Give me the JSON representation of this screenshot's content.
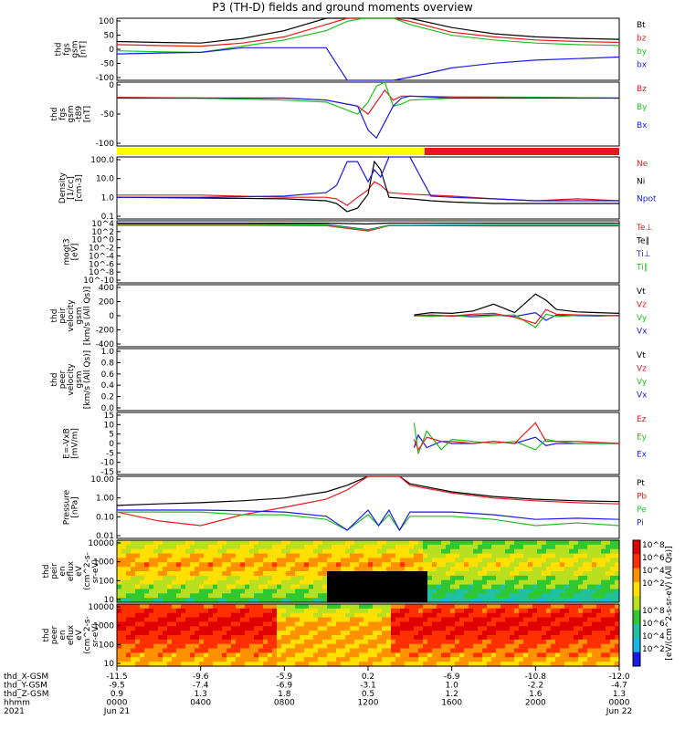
{
  "title": "P3 (TH-D) fields and ground moments overview",
  "colors": {
    "black": "#000000",
    "red": "#e8191c",
    "green": "#20c020",
    "blue": "#1a1ae6",
    "yellow": "#ffff00"
  },
  "chart_data": [
    {
      "type": "line",
      "id": "fgs_gsm",
      "ylabel": [
        "thd",
        "fgs",
        "gsm",
        "[nT]"
      ],
      "ylim": [
        -100,
        100
      ],
      "yticks": [
        "100",
        "50",
        "0",
        "-50",
        "-100"
      ],
      "legend": [
        {
          "name": "Bt",
          "color": "black"
        },
        {
          "name": "bz",
          "color": "red"
        },
        {
          "name": "by",
          "color": "green"
        },
        {
          "name": "bx",
          "color": "blue"
        }
      ],
      "x_hours": [
        0,
        2,
        4,
        6,
        8,
        10,
        11,
        11.8,
        12.5,
        13.2,
        14,
        16,
        18,
        20,
        22,
        24
      ],
      "series": [
        {
          "name": "Bt",
          "color": "black",
          "values": [
            25,
            22,
            20,
            35,
            60,
            100,
            100,
            100,
            100,
            100,
            100,
            70,
            50,
            40,
            35,
            32
          ]
        },
        {
          "name": "bz",
          "color": "red",
          "values": [
            15,
            12,
            10,
            20,
            40,
            80,
            100,
            100,
            100,
            100,
            90,
            55,
            40,
            30,
            25,
            22
          ]
        },
        {
          "name": "by",
          "color": "green",
          "values": [
            -5,
            -8,
            -10,
            10,
            30,
            60,
            90,
            100,
            100,
            100,
            80,
            45,
            30,
            20,
            15,
            12
          ]
        },
        {
          "name": "bx",
          "color": "blue",
          "values": [
            -15,
            -12,
            -10,
            5,
            5,
            5,
            -100,
            -100,
            -100,
            -100,
            -90,
            -60,
            -45,
            -35,
            -30,
            -25
          ]
        }
      ]
    },
    {
      "type": "line",
      "id": "fgs_gse",
      "ylabel": [
        "thd",
        "fgs",
        "gsm",
        "-t89",
        "[nT]"
      ],
      "ylim": [
        -120,
        40
      ],
      "yticks": [
        "0",
        "-50",
        "-100"
      ],
      "legend": [
        {
          "name": "Bz",
          "color": "red"
        },
        {
          "name": "By",
          "color": "green"
        },
        {
          "name": "Bx",
          "color": "blue"
        }
      ],
      "x_hours": [
        0,
        4,
        8,
        10,
        11.5,
        12,
        12.4,
        12.8,
        13.2,
        13.6,
        14,
        16,
        20,
        24
      ],
      "series": [
        {
          "name": "Bz",
          "color": "red",
          "values": [
            2,
            0,
            0,
            -5,
            -20,
            -40,
            -10,
            20,
            -5,
            5,
            5,
            3,
            2,
            0
          ]
        },
        {
          "name": "By",
          "color": "green",
          "values": [
            0,
            0,
            -5,
            -10,
            -40,
            -10,
            30,
            50,
            -20,
            -15,
            -5,
            0,
            2,
            0
          ]
        },
        {
          "name": "Bx",
          "color": "blue",
          "values": [
            0,
            0,
            0,
            -5,
            -20,
            -80,
            -100,
            -60,
            -20,
            0,
            5,
            0,
            0,
            0
          ]
        }
      ]
    },
    {
      "type": "bar",
      "id": "region_bar",
      "segments": [
        {
          "from": 0,
          "to": 14.7,
          "color": "yellow"
        },
        {
          "from": 14.7,
          "to": 24,
          "color": "red"
        }
      ]
    },
    {
      "type": "line",
      "id": "density",
      "log": true,
      "ylabel": [
        "Density",
        "[1/cc]",
        "[cm-3]"
      ],
      "ylim": [
        0.02,
        200
      ],
      "yticks": [
        "100.0",
        "10.0",
        "1.0",
        "0.1"
      ],
      "legend": [
        {
          "name": "Ne",
          "color": "red"
        },
        {
          "name": "Ni",
          "color": "black"
        },
        {
          "name": "Npot",
          "color": "blue"
        }
      ],
      "x_hours": [
        0,
        4,
        8,
        10,
        10.5,
        11,
        11.5,
        12,
        12.3,
        12.6,
        13,
        14,
        15,
        16,
        18,
        20,
        22,
        24
      ],
      "series": [
        {
          "name": "Ne",
          "color": "red",
          "values": [
            0.7,
            0.7,
            0.5,
            0.5,
            0.4,
            0.15,
            0.5,
            1.5,
            5,
            3,
            1,
            0.8,
            0.7,
            0.6,
            0.4,
            0.3,
            0.4,
            0.3
          ]
        },
        {
          "name": "Ni",
          "color": "black",
          "values": [
            0.5,
            0.45,
            0.4,
            0.3,
            0.2,
            0.06,
            0.1,
            0.8,
            100,
            30,
            0.5,
            0.4,
            0.3,
            0.25,
            0.2,
            0.2,
            0.2,
            0.2
          ]
        },
        {
          "name": "Npot",
          "color": "blue",
          "values": [
            0.5,
            0.5,
            0.6,
            1.0,
            3.0,
            100,
            100,
            5,
            30,
            10,
            200,
            200,
            0.6,
            0.5,
            0.4,
            0.3,
            0.3,
            0.3
          ]
        }
      ]
    },
    {
      "type": "line",
      "id": "temp",
      "log": true,
      "ylabel": [
        "mogt3",
        "[eV]"
      ],
      "ylim": [
        1e-10,
        10000
      ],
      "yticks": [
        "10^4",
        "10^2",
        "10^0",
        "10^-2",
        "10^-4",
        "10^-6",
        "10^-8",
        "10^-10"
      ],
      "legend": [
        {
          "name": "Te⊥",
          "color": "red"
        },
        {
          "name": "Te∥",
          "color": "black"
        },
        {
          "name": "Ti⊥",
          "color": "blue"
        },
        {
          "name": "Ti∥",
          "color": "green"
        }
      ],
      "x_hours": [
        0,
        6,
        10,
        12,
        13,
        14,
        18,
        24
      ],
      "series": [
        {
          "name": "Te∥",
          "color": "black",
          "values": [
            3000,
            3000,
            3000,
            2000,
            3000,
            3000,
            3000,
            3000
          ]
        },
        {
          "name": "Te⊥",
          "color": "red",
          "values": [
            1000,
            1000,
            800,
            50,
            800,
            800,
            700,
            700
          ]
        },
        {
          "name": "Ti⊥",
          "color": "blue",
          "values": [
            2000,
            2000,
            1500,
            100,
            1000,
            1000,
            1200,
            1200
          ]
        },
        {
          "name": "Ti∥",
          "color": "green",
          "values": [
            1500,
            1500,
            1200,
            80,
            900,
            900,
            1000,
            1000
          ]
        }
      ]
    },
    {
      "type": "line",
      "id": "peir_velocity",
      "ylabel": [
        "thd",
        "peir",
        "velocity",
        "gsm",
        "[km/s (All Qs)]"
      ],
      "ylim": [
        -400,
        400
      ],
      "yticks": [
        "400",
        "200",
        "0",
        "-200",
        "-400"
      ],
      "legend": [
        {
          "name": "Vt",
          "color": "black"
        },
        {
          "name": "Vz",
          "color": "red"
        },
        {
          "name": "Vy",
          "color": "green"
        },
        {
          "name": "Vx",
          "color": "blue"
        }
      ],
      "x_hours": [
        14.2,
        15,
        16,
        17,
        18,
        19,
        20,
        20.5,
        21,
        22,
        23,
        24
      ],
      "series": [
        {
          "name": "Vx",
          "color": "blue",
          "values": [
            0,
            5,
            -5,
            0,
            10,
            -10,
            40,
            -60,
            10,
            0,
            -5,
            5
          ]
        },
        {
          "name": "Vy",
          "color": "green",
          "values": [
            0,
            -10,
            5,
            -20,
            0,
            10,
            -150,
            20,
            -10,
            5,
            0,
            0
          ]
        },
        {
          "name": "Vz",
          "color": "red",
          "values": [
            0,
            10,
            -5,
            20,
            30,
            -20,
            -100,
            80,
            20,
            10,
            5,
            0
          ]
        },
        {
          "name": "Vt",
          "color": "black",
          "values": [
            10,
            40,
            30,
            60,
            150,
            40,
            280,
            200,
            80,
            50,
            40,
            30
          ]
        }
      ]
    },
    {
      "type": "line",
      "id": "peer_velocity",
      "ylabel": [
        "thd",
        "peer",
        "velocity",
        "gsm",
        "[km/s (All Qs)]"
      ],
      "ylim": [
        0,
        1
      ],
      "yticks": [
        "1.0",
        "0.8",
        "0.6",
        "0.4",
        "0.2",
        "0.0"
      ],
      "legend": [
        {
          "name": "Vt",
          "color": "black"
        },
        {
          "name": "Vz",
          "color": "red"
        },
        {
          "name": "Vy",
          "color": "green"
        },
        {
          "name": "Vx",
          "color": "blue"
        }
      ],
      "x_hours": [],
      "series": []
    },
    {
      "type": "line",
      "id": "efield",
      "ylabel": [
        "E=-VxB",
        "[mV/m]"
      ],
      "ylim": [
        -15,
        15
      ],
      "yticks": [
        "15",
        "10",
        "5",
        "0",
        "-5",
        "-10",
        "-15"
      ],
      "legend": [
        {
          "name": "Ez",
          "color": "red"
        },
        {
          "name": "Ey",
          "color": "green"
        },
        {
          "name": "Ex",
          "color": "blue"
        }
      ],
      "x_hours": [
        14.2,
        14.4,
        14.8,
        15.5,
        16,
        17,
        18,
        19,
        20,
        20.5,
        21,
        22,
        24
      ],
      "series": [
        {
          "name": "Ex",
          "color": "blue",
          "values": [
            -2,
            4,
            -2,
            1,
            0,
            0,
            1,
            0,
            3,
            -1,
            0,
            0,
            0
          ]
        },
        {
          "name": "Ey",
          "color": "green",
          "values": [
            10,
            -5,
            6,
            -3,
            2,
            1,
            0,
            1,
            -3,
            2,
            1,
            0,
            0
          ]
        },
        {
          "name": "Ez",
          "color": "red",
          "values": [
            2,
            -3,
            3,
            1,
            1,
            0,
            1,
            0,
            10,
            1,
            1,
            1,
            0
          ]
        }
      ]
    },
    {
      "type": "line",
      "id": "pressure",
      "log": true,
      "ylabel": [
        "Pressure",
        "[nPa]"
      ],
      "ylim": [
        0.003,
        30
      ],
      "yticks": [
        "10.00",
        "1.00",
        "0.10",
        "0.01"
      ],
      "legend": [
        {
          "name": "Pt",
          "color": "black"
        },
        {
          "name": "Pb",
          "color": "red"
        },
        {
          "name": "Pe",
          "color": "green"
        },
        {
          "name": "Pi",
          "color": "blue"
        }
      ],
      "x_hours": [
        0,
        2,
        4,
        6,
        8,
        10,
        11,
        12,
        12.5,
        13,
        13.5,
        14,
        16,
        18,
        20,
        22,
        24
      ],
      "series": [
        {
          "name": "Pt",
          "color": "black",
          "values": [
            0.4,
            0.5,
            0.6,
            0.8,
            1.2,
            3,
            8,
            30,
            30,
            30,
            30,
            10,
            3,
            1.5,
            1,
            0.8,
            0.7
          ]
        },
        {
          "name": "Pb",
          "color": "red",
          "values": [
            0.15,
            0.04,
            0.02,
            0.1,
            0.3,
            1,
            4,
            30,
            30,
            30,
            30,
            8,
            2.5,
            1.2,
            0.8,
            0.6,
            0.5
          ]
        },
        {
          "name": "Pe",
          "color": "green",
          "values": [
            0.15,
            0.15,
            0.15,
            0.1,
            0.1,
            0.05,
            0.01,
            0.1,
            0.02,
            0.1,
            0.01,
            0.08,
            0.08,
            0.05,
            0.02,
            0.03,
            0.02
          ]
        },
        {
          "name": "Pi",
          "color": "blue",
          "values": [
            0.2,
            0.2,
            0.2,
            0.18,
            0.15,
            0.08,
            0.01,
            0.2,
            0.02,
            0.2,
            0.01,
            0.15,
            0.15,
            0.1,
            0.05,
            0.06,
            0.05
          ]
        }
      ]
    },
    {
      "type": "heatmap",
      "id": "peir_spec",
      "ylabel": [
        "thd",
        "peir",
        "en",
        "eflux",
        "eV",
        "(cm^2-s-",
        "sr-eV)"
      ],
      "yticks": [
        "10000",
        "1000",
        "100",
        "10"
      ]
    },
    {
      "type": "heatmap",
      "id": "peer_spec",
      "ylabel": [
        "thd",
        "peer",
        "en",
        "eflux",
        "eV",
        "(cm^2-s-",
        "sr-eV)"
      ],
      "yticks": [
        "10000",
        "1000",
        "100",
        "10"
      ]
    }
  ],
  "colorbar": {
    "label": "[eV/(cm^2-s-sr-eV) (All Qs)]",
    "ticks_top": [
      "10^8",
      "10^6",
      "10^4",
      "10^2"
    ],
    "ticks_bottom": [
      "10^8",
      "10^6",
      "10^4",
      "10^2"
    ]
  },
  "xaxis": {
    "rows": [
      {
        "label": "thd_X-GSM",
        "values": [
          "-11.5",
          "-9.6",
          "-5.9",
          "0.2",
          "-6.9",
          "-10.8",
          "-12.0"
        ]
      },
      {
        "label": "thd_Y-GSM",
        "values": [
          "-9.5",
          "-7.4",
          "-6.9",
          "-3.1",
          "1.0",
          "-2.2",
          "-4.7"
        ]
      },
      {
        "label": "thd_Z-GSM",
        "values": [
          "0.9",
          "1.3",
          "1.8",
          "0.5",
          "1.2",
          "1.6",
          "1.3"
        ]
      },
      {
        "label": "hhmm",
        "values": [
          "0000",
          "0400",
          "0800",
          "1200",
          "1600",
          "2000",
          "0000"
        ]
      },
      {
        "label": "2021",
        "values": [
          "Jun 21",
          "",
          "",
          "",
          "",
          "",
          "Jun 22"
        ]
      }
    ]
  }
}
